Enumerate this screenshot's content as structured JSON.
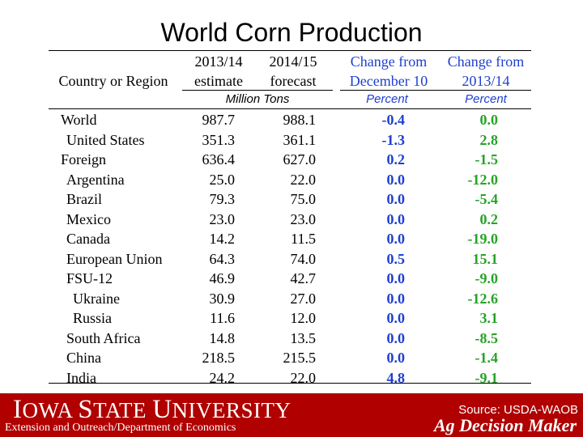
{
  "title": "World Corn Production",
  "table": {
    "headers": {
      "col_name": "Country or Region",
      "col_a_1": "2013/14",
      "col_a_2": "estimate",
      "col_b_1": "2014/15",
      "col_b_2": "forecast",
      "col_c_1": "Change from",
      "col_c_2": "December 10",
      "col_d_1": "Change from",
      "col_d_2": "2013/14"
    },
    "units": {
      "tons": "Million Tons",
      "pct1": "Percent",
      "pct2": "Percent"
    },
    "rows": [
      {
        "name": "World",
        "a": "987.7",
        "b": "988.1",
        "c": "-0.4",
        "d": "0.0"
      },
      {
        "name": "United States",
        "a": "351.3",
        "b": "361.1",
        "c": "-1.3",
        "d": "2.8"
      },
      {
        "name": "Foreign",
        "a": "636.4",
        "b": "627.0",
        "c": "0.2",
        "d": "-1.5"
      },
      {
        "name": "Argentina",
        "a": "25.0",
        "b": "22.0",
        "c": "0.0",
        "d": "-12.0"
      },
      {
        "name": "Brazil",
        "a": "79.3",
        "b": "75.0",
        "c": "0.0",
        "d": "-5.4"
      },
      {
        "name": "Mexico",
        "a": "23.0",
        "b": "23.0",
        "c": "0.0",
        "d": "0.2"
      },
      {
        "name": "Canada",
        "a": "14.2",
        "b": "11.5",
        "c": "0.0",
        "d": "-19.0"
      },
      {
        "name": "European Union",
        "a": "64.3",
        "b": "74.0",
        "c": "0.5",
        "d": "15.1"
      },
      {
        "name": "FSU-12",
        "a": "46.9",
        "b": "42.7",
        "c": "0.0",
        "d": "-9.0"
      },
      {
        "name": "Ukraine",
        "a": "30.9",
        "b": "27.0",
        "c": "0.0",
        "d": "-12.6"
      },
      {
        "name": "Russia",
        "a": "11.6",
        "b": "12.0",
        "c": "0.0",
        "d": "3.1"
      },
      {
        "name": "South Africa",
        "a": "14.8",
        "b": "13.5",
        "c": "0.0",
        "d": "-8.5"
      },
      {
        "name": "China",
        "a": "218.5",
        "b": "215.5",
        "c": "0.0",
        "d": "-1.4"
      },
      {
        "name": "India",
        "a": "24.2",
        "b": "22.0",
        "c": "4.8",
        "d": "-9.1"
      }
    ]
  },
  "footer": {
    "university_cap1": "I",
    "university_rest1": "OWA ",
    "university_cap2": "S",
    "university_rest2": "TATE ",
    "university_cap3": "U",
    "university_rest3": "NIVERSITY",
    "extension": "Extension and Outreach/Department of Economics",
    "source": "Source: USDA-WAOB",
    "brand": "Ag Decision Maker"
  },
  "colors": {
    "footer_bg": "#b00000",
    "change_blue": "#1e3fd0",
    "change_green": "#27a327"
  }
}
